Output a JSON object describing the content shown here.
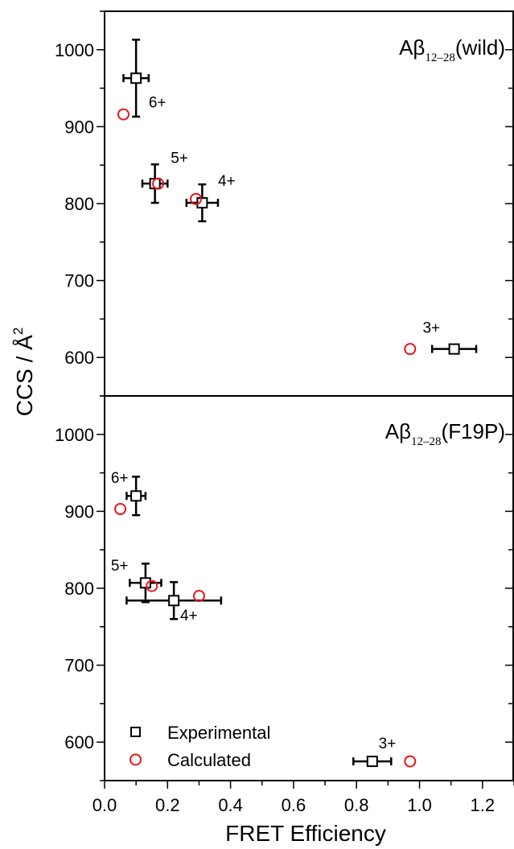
{
  "chart_data": [
    {
      "type": "scatter",
      "panel": "top",
      "label_main": "Aβ",
      "label_sub": "12–28",
      "label_tail": "(wild)",
      "xlim": [
        0.0,
        1.3
      ],
      "ylim": [
        550,
        1050
      ],
      "yticks": [
        "600",
        "700",
        "800",
        "900",
        "1000"
      ],
      "series": [
        {
          "name": "Experimental",
          "color": "#000000",
          "marker": "square",
          "points": [
            {
              "charge": "6+",
              "x": 0.1,
              "y": 963,
              "xerr": 0.04,
              "yerr": 50
            },
            {
              "charge": "5+",
              "x": 0.16,
              "y": 826,
              "xerr": 0.04,
              "yerr": 25
            },
            {
              "charge": "4+",
              "x": 0.31,
              "y": 801,
              "xerr": 0.05,
              "yerr": 24
            },
            {
              "charge": "3+",
              "x": 1.11,
              "y": 611,
              "xerr": 0.07,
              "yerr": 0
            }
          ]
        },
        {
          "name": "Calculated",
          "color": "#e8141c",
          "marker": "circle",
          "points": [
            {
              "x": 0.06,
              "y": 916
            },
            {
              "x": 0.17,
              "y": 826
            },
            {
              "x": 0.29,
              "y": 806
            },
            {
              "x": 0.97,
              "y": 611
            }
          ]
        }
      ],
      "charge_labels": [
        {
          "text": "6+",
          "x": 0.14,
          "y": 925
        },
        {
          "text": "5+",
          "x": 0.21,
          "y": 853
        },
        {
          "text": "4+",
          "x": 0.36,
          "y": 823
        },
        {
          "text": "3+",
          "x": 1.01,
          "y": 632
        }
      ]
    },
    {
      "type": "scatter",
      "panel": "bottom",
      "label_main": "Aβ",
      "label_sub": "12–28",
      "label_tail": "(F19P)",
      "xlim": [
        0.0,
        1.3
      ],
      "ylim": [
        550,
        1050
      ],
      "yticks": [
        "600",
        "700",
        "800",
        "900",
        "1000"
      ],
      "xticks": [
        "0.0",
        "0.2",
        "0.4",
        "0.6",
        "0.8",
        "1.0",
        "1.2"
      ],
      "xlabel": "FRET Efficiency",
      "series": [
        {
          "name": "Experimental",
          "color": "#000000",
          "marker": "square",
          "points": [
            {
              "charge": "6+",
              "x": 0.1,
              "y": 920,
              "xerr": 0.03,
              "yerr": 25
            },
            {
              "charge": "5+",
              "x": 0.13,
              "y": 807,
              "xerr": 0.05,
              "yerr": 25
            },
            {
              "charge": "4+",
              "x": 0.22,
              "y": 784,
              "xerr": 0.15,
              "yerr": 24
            },
            {
              "charge": "3+",
              "x": 0.85,
              "y": 575,
              "xerr": 0.06,
              "yerr": 0
            }
          ]
        },
        {
          "name": "Calculated",
          "color": "#e8141c",
          "marker": "circle",
          "points": [
            {
              "x": 0.05,
              "y": 903
            },
            {
              "x": 0.15,
              "y": 803
            },
            {
              "x": 0.3,
              "y": 790
            },
            {
              "x": 0.97,
              "y": 575
            }
          ]
        }
      ],
      "charge_labels": [
        {
          "text": "6+",
          "x": 0.02,
          "y": 937
        },
        {
          "text": "5+",
          "x": 0.02,
          "y": 823
        },
        {
          "text": "4+",
          "x": 0.24,
          "y": 758
        },
        {
          "text": "3+",
          "x": 0.87,
          "y": 592
        }
      ]
    }
  ],
  "shared": {
    "ylabel_prefix": "CCS / Å",
    "ylabel_sup": "2"
  },
  "legend": [
    {
      "label": "Experimental",
      "marker": "square",
      "color": "#000000"
    },
    {
      "label": "Calculated",
      "marker": "circle",
      "color": "#e8141c"
    }
  ]
}
